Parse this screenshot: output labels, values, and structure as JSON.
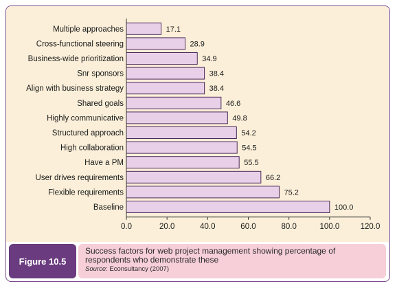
{
  "chart_data": {
    "type": "bar",
    "orientation": "horizontal",
    "categories": [
      "Multiple approaches",
      "Cross-functional steering",
      "Business-wide prioritization",
      "Snr sponsors",
      "Align with business strategy",
      "Shared goals",
      "Highly communicative",
      "Structured approach",
      "High collaboration",
      "Have a PM",
      "User drives requirements",
      "Flexible requirements",
      "Baseline"
    ],
    "values": [
      17.1,
      28.9,
      34.9,
      38.4,
      38.4,
      46.6,
      49.8,
      54.2,
      54.5,
      55.5,
      66.2,
      75.2,
      100.0
    ],
    "value_labels": [
      "17.1",
      "28.9",
      "34.9",
      "38.4",
      "38.4",
      "46.6",
      "49.8",
      "54.2",
      "54.5",
      "55.5",
      "66.2",
      "75.2",
      "100.0"
    ],
    "xlim": [
      0,
      120
    ],
    "xticks": [
      "0.0",
      "20.0",
      "40.0",
      "60.0",
      "80.0",
      "100.0",
      "120.0"
    ],
    "grid": false,
    "bar_color": "#e8d0e8",
    "bar_edge_color": "#4a2a5a",
    "background_color": "#fbefd9",
    "title": "",
    "xlabel": "",
    "ylabel": ""
  },
  "caption": {
    "figure_label": "Figure 10.5",
    "text": "Success factors for web project management showing percentage of respondents who demonstrate these",
    "source_label": "Source",
    "source_text": ": Econsultancy (2007)"
  },
  "colors": {
    "frame": "#7a4a8c",
    "figure_label_bg": "#6a3b7e",
    "caption_bg": "#f6cfd8"
  }
}
